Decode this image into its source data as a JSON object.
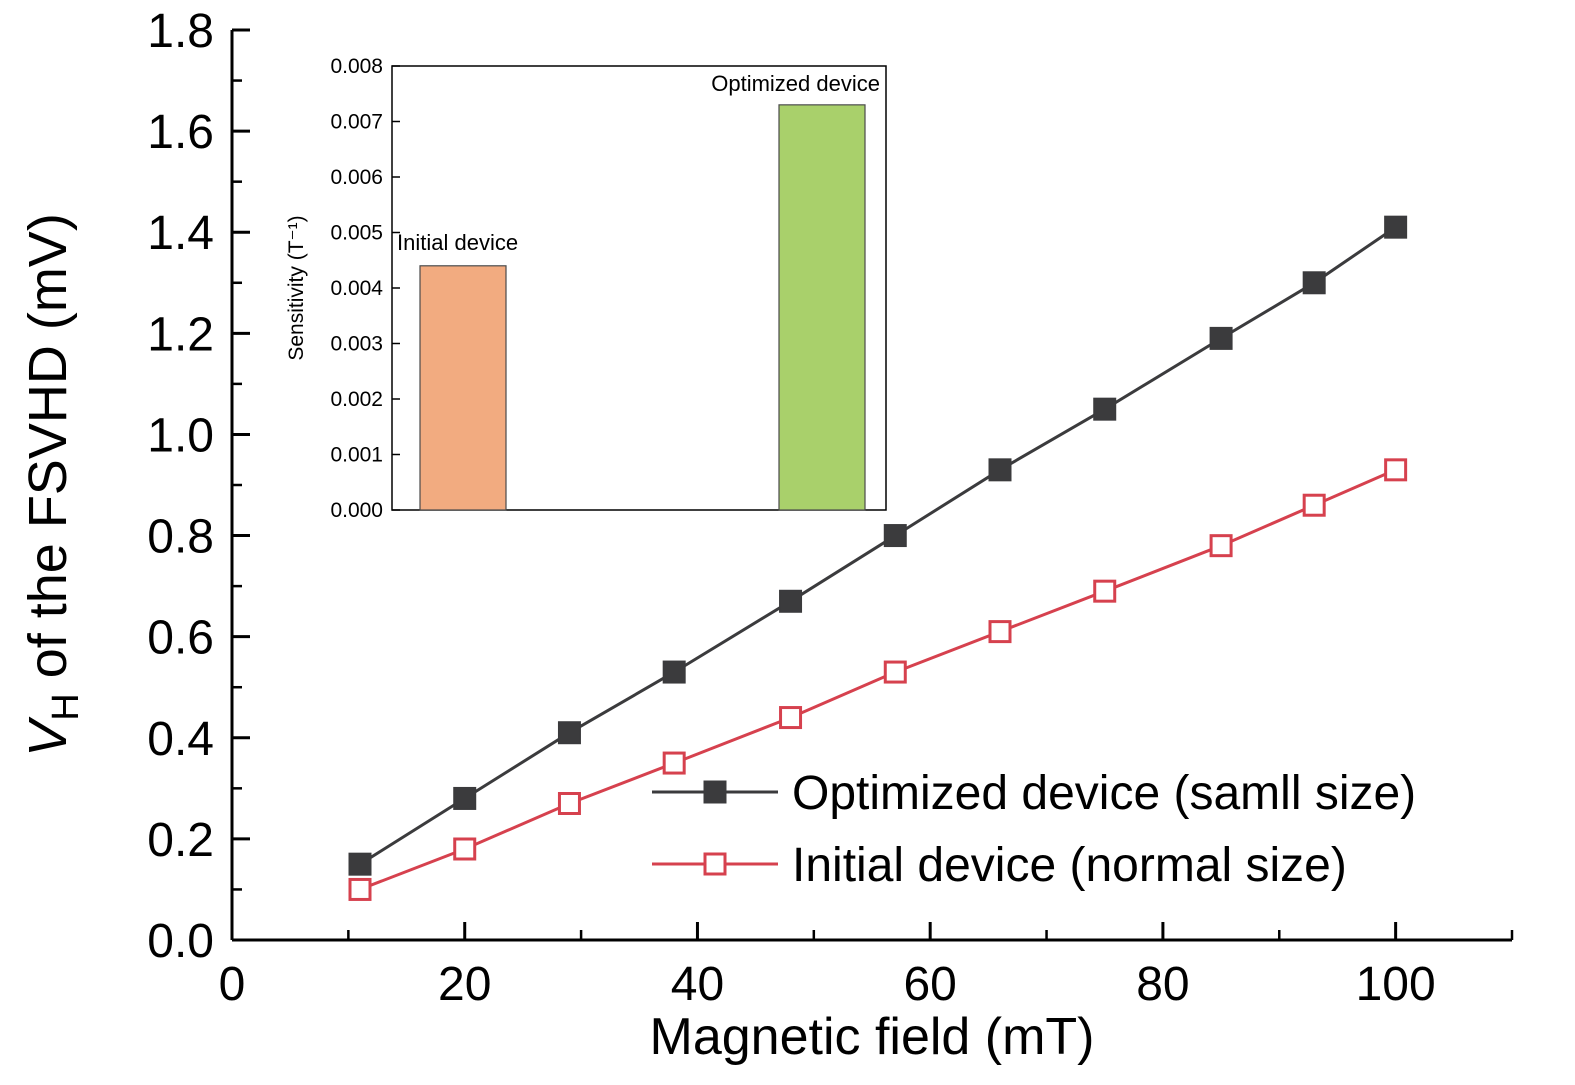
{
  "figure": {
    "background": "#ffffff"
  },
  "chart_data": [
    {
      "id": "main-line-chart",
      "type": "line",
      "title": "",
      "xlabel": "Magnetic field (mT)",
      "ylabel": "V_H of the FSVHD (mV)",
      "ylabel_parts": {
        "variable": "V",
        "subscript": "H",
        "rest": " of the FSVHD (mV)"
      },
      "xlim": [
        0,
        110
      ],
      "ylim": [
        0,
        1.8
      ],
      "xticks": [
        0,
        20,
        40,
        60,
        80,
        100
      ],
      "yticks": [
        0.0,
        0.2,
        0.4,
        0.6,
        0.8,
        1.0,
        1.2,
        1.4,
        1.6,
        1.8
      ],
      "ytick_decimals": 1,
      "x_minor_ticks": [
        10,
        30,
        50,
        70,
        90,
        110
      ],
      "y_minor_ticks": [
        0.1,
        0.3,
        0.5,
        0.7,
        0.9,
        1.1,
        1.3,
        1.5,
        1.7
      ],
      "grid": false,
      "legend_position": "inside-bottom-right",
      "x": [
        11,
        20,
        29,
        38,
        48,
        57,
        66,
        75,
        85,
        93,
        100
      ],
      "series": [
        {
          "name": "Optimized device (samll size)",
          "color": "#3b3b3d",
          "marker": "filled-square",
          "values": [
            0.15,
            0.28,
            0.41,
            0.53,
            0.67,
            0.8,
            0.93,
            1.05,
            1.19,
            1.3,
            1.41
          ]
        },
        {
          "name": "Initial device (normal size)",
          "color": "#d6414e",
          "marker": "open-square",
          "values": [
            0.1,
            0.18,
            0.27,
            0.35,
            0.44,
            0.53,
            0.61,
            0.69,
            0.78,
            0.86,
            0.93
          ]
        }
      ]
    },
    {
      "id": "inset-bar-chart",
      "type": "bar",
      "title": "",
      "xlabel": "",
      "ylabel": "Sensitivity (T⁻¹)",
      "ylim": [
        0,
        0.008
      ],
      "yticks": [
        0,
        0.001,
        0.002,
        0.003,
        0.004,
        0.005,
        0.006,
        0.007,
        0.008
      ],
      "ytick_decimals": 3,
      "categories": [
        "Initial device",
        "Optimized device"
      ],
      "values": [
        0.0044,
        0.0073
      ],
      "colors": [
        "#f2ab80",
        "#a9d06b"
      ],
      "grid": false
    }
  ]
}
